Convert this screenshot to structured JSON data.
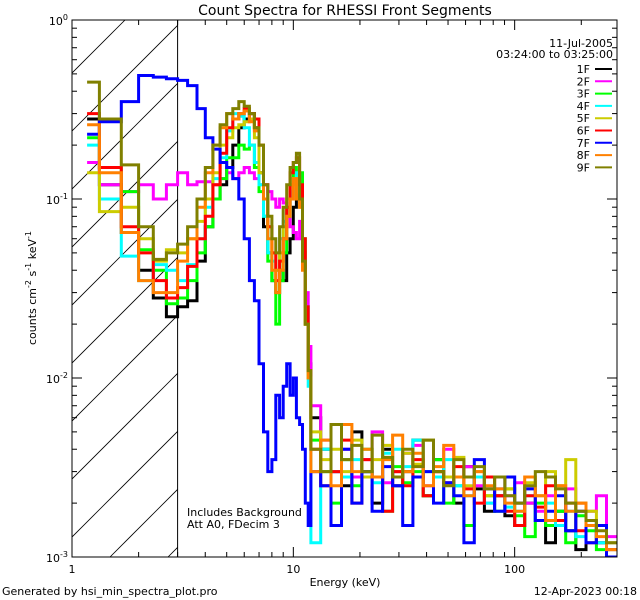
{
  "chart_data": {
    "type": "line",
    "title": "Count Spectra for RHESSI Front Segments",
    "xlabel": "Energy (keV)",
    "ylabel": {
      "base": "counts cm",
      "e1": "-2",
      "mid": " s",
      "e2": "-1",
      "mid2": " keV",
      "e3": "-1"
    },
    "xscale": "log",
    "yscale": "log",
    "xlim": [
      1,
      290
    ],
    "ylim": [
      0.001,
      1
    ],
    "x_ticks": [
      {
        "value": 1,
        "label": "1"
      },
      {
        "value": 10,
        "label": "10"
      },
      {
        "value": 100,
        "label": "100"
      }
    ],
    "y_ticks": [
      {
        "value": 1,
        "base": "10",
        "exp": "0"
      },
      {
        "value": 0.1,
        "base": "10",
        "exp": "-1"
      },
      {
        "value": 0.01,
        "base": "10",
        "exp": "-2"
      },
      {
        "value": 0.001,
        "base": "10",
        "exp": "-3"
      }
    ],
    "date": "11-Jul-2005",
    "time_range": "03:24:00 to 03:25:00",
    "hatched_region_keV": [
      1,
      3
    ],
    "annotations": [
      "Includes Background",
      "Att A0, FDecim 3"
    ],
    "legend_position": "top-right",
    "energy_edges": [
      1.17,
      1.33,
      1.67,
      2.0,
      2.33,
      2.67,
      3.0,
      3.33,
      3.67,
      4.0,
      4.33,
      4.67,
      5.0,
      5.33,
      5.67,
      6.0,
      6.33,
      6.67,
      7.0,
      7.33,
      7.67,
      8.0,
      8.33,
      8.67,
      9.0,
      9.33,
      9.67,
      10.0,
      10.33,
      10.67,
      11.0,
      11.33,
      11.67,
      12.0,
      13.3,
      14.8,
      16.5,
      18.4,
      20.4,
      22.7,
      25.3,
      28.1,
      31.2,
      34.7,
      38.6,
      43,
      47.8,
      53.1,
      59,
      65.7,
      73,
      81.2,
      90.3,
      100,
      111,
      124,
      138,
      153,
      170,
      189,
      210,
      234,
      260,
      290
    ],
    "series": [
      {
        "name": "1F",
        "color": "#000000",
        "values": [
          0.28,
          0.12,
          0.065,
          0.04,
          0.028,
          0.022,
          0.025,
          0.027,
          0.045,
          0.07,
          0.1,
          0.12,
          0.15,
          0.2,
          0.25,
          0.28,
          0.3,
          0.25,
          0.14,
          0.07,
          0.05,
          0.035,
          0.03,
          0.04,
          0.035,
          0.05,
          0.06,
          0.09,
          0.12,
          0.1,
          0.05,
          0.02,
          0.012,
          0.006,
          0.004,
          0.003,
          0.0025,
          0.005,
          0.003,
          0.002,
          0.004,
          0.0025,
          0.003,
          0.0045,
          0.0022,
          0.0035,
          0.0028,
          0.002,
          0.0032,
          0.0024,
          0.0018,
          0.0022,
          0.0017,
          0.0015,
          0.002,
          0.0016,
          0.0012,
          0.0018,
          0.0014,
          0.0011,
          0.0016,
          0.0012,
          0.001
        ]
      },
      {
        "name": "2F",
        "color": "#ff00ff",
        "values": [
          0.16,
          0.12,
          0.11,
          0.12,
          0.1,
          0.12,
          0.14,
          0.12,
          0.125,
          0.125,
          0.12,
          0.13,
          0.14,
          0.13,
          0.14,
          0.15,
          0.14,
          0.13,
          0.12,
          0.12,
          0.11,
          0.1,
          0.09,
          0.1,
          0.095,
          0.08,
          0.07,
          0.065,
          0.06,
          0.075,
          0.05,
          0.03,
          0.015,
          0.007,
          0.0045,
          0.003,
          0.004,
          0.0028,
          0.0035,
          0.005,
          0.0026,
          0.003,
          0.0038,
          0.0042,
          0.0025,
          0.003,
          0.004,
          0.0028,
          0.0032,
          0.0025,
          0.002,
          0.0024,
          0.0022,
          0.0026,
          0.002,
          0.0018,
          0.0022,
          0.0016,
          0.0024,
          0.002,
          0.0018,
          0.0022,
          0.0013
        ]
      },
      {
        "name": "3F",
        "color": "#00ff00",
        "values": [
          0.22,
          0.15,
          0.11,
          0.052,
          0.04,
          0.026,
          0.028,
          0.035,
          0.05,
          0.07,
          0.1,
          0.13,
          0.17,
          0.17,
          0.2,
          0.19,
          0.2,
          0.15,
          0.11,
          0.08,
          0.045,
          0.035,
          0.02,
          0.035,
          0.05,
          0.08,
          0.12,
          0.15,
          0.13,
          0.14,
          0.06,
          0.02,
          0.01,
          0.0045,
          0.003,
          0.002,
          0.0035,
          0.0025,
          0.004,
          0.0028,
          0.0018,
          0.0032,
          0.0026,
          0.003,
          0.0022,
          0.0035,
          0.002,
          0.0025,
          0.0015,
          0.0028,
          0.0022,
          0.0018,
          0.0024,
          0.0017,
          0.0013,
          0.002,
          0.0015,
          0.0018,
          0.0012,
          0.0017,
          0.0014,
          0.0011,
          0.001
        ]
      },
      {
        "name": "4F",
        "color": "#00ffff",
        "values": [
          0.2,
          0.1,
          0.048,
          0.035,
          0.043,
          0.04,
          0.035,
          0.043,
          0.06,
          0.09,
          0.13,
          0.17,
          0.24,
          0.3,
          0.29,
          0.25,
          0.2,
          0.16,
          0.12,
          0.08,
          0.05,
          0.045,
          0.04,
          0.06,
          0.075,
          0.09,
          0.1,
          0.11,
          0.14,
          0.1,
          0.05,
          0.025,
          0.009,
          0.0012,
          0.004,
          0.003,
          0.0028,
          0.0035,
          0.003,
          0.0026,
          0.0038,
          0.004,
          0.0032,
          0.0045,
          0.003,
          0.0028,
          0.0035,
          0.0025,
          0.0022,
          0.0028,
          0.002,
          0.0024,
          0.0019,
          0.0018,
          0.0022,
          0.0016,
          0.002,
          0.0015,
          0.0018,
          0.0013,
          0.0016,
          0.0012,
          0.0011
        ]
      },
      {
        "name": "5F",
        "color": "#cccc00",
        "values": [
          0.14,
          0.085,
          0.09,
          0.06,
          0.045,
          0.052,
          0.05,
          0.06,
          0.075,
          0.1,
          0.14,
          0.2,
          0.22,
          0.25,
          0.26,
          0.27,
          0.28,
          0.22,
          0.14,
          0.1,
          0.07,
          0.05,
          0.04,
          0.05,
          0.07,
          0.1,
          0.12,
          0.13,
          0.1,
          0.09,
          0.05,
          0.02,
          0.01,
          0.005,
          0.0035,
          0.004,
          0.003,
          0.0045,
          0.0028,
          0.0035,
          0.0042,
          0.003,
          0.0038,
          0.0033,
          0.0045,
          0.003,
          0.0028,
          0.0036,
          0.0025,
          0.003,
          0.0022,
          0.0028,
          0.0024,
          0.002,
          0.0026,
          0.0022,
          0.003,
          0.0025,
          0.0035,
          0.002,
          0.0018,
          0.0015,
          0.0012
        ]
      },
      {
        "name": "6F",
        "color": "#ff0000",
        "values": [
          0.3,
          0.15,
          0.07,
          0.05,
          0.035,
          0.028,
          0.032,
          0.042,
          0.06,
          0.08,
          0.12,
          0.18,
          0.25,
          0.28,
          0.3,
          0.32,
          0.3,
          0.28,
          0.2,
          0.12,
          0.07,
          0.05,
          0.035,
          0.045,
          0.06,
          0.09,
          0.14,
          0.16,
          0.17,
          0.12,
          0.06,
          0.025,
          0.011,
          0.004,
          0.0025,
          0.003,
          0.0045,
          0.002,
          0.0035,
          0.0028,
          0.0018,
          0.003,
          0.0025,
          0.0035,
          0.0022,
          0.003,
          0.0026,
          0.0032,
          0.0024,
          0.002,
          0.0028,
          0.0022,
          0.0018,
          0.0015,
          0.0022,
          0.0019,
          0.0025,
          0.0016,
          0.002,
          0.0014,
          0.0012,
          0.0015,
          0.0011
        ]
      },
      {
        "name": "7F",
        "color": "#0000ff",
        "values": [
          0.23,
          0.27,
          0.35,
          0.49,
          0.48,
          0.47,
          0.46,
          0.43,
          0.32,
          0.22,
          0.19,
          0.16,
          0.15,
          0.13,
          0.1,
          0.06,
          0.035,
          0.027,
          0.012,
          0.005,
          0.003,
          0.0035,
          0.008,
          0.006,
          0.009,
          0.012,
          0.008,
          0.01,
          0.006,
          0.0055,
          0.004,
          0.002,
          0.0015,
          0.003,
          0.0025,
          0.0015,
          0.004,
          0.002,
          0.003,
          0.0018,
          0.0032,
          0.0025,
          0.0015,
          0.0028,
          0.003,
          0.002,
          0.0026,
          0.0022,
          0.0012,
          0.0035,
          0.0024,
          0.0018,
          0.0028,
          0.002,
          0.0024,
          0.0016,
          0.0018,
          0.0022,
          0.0014,
          0.0018,
          0.0012,
          0.0015,
          0.001
        ]
      },
      {
        "name": "8F",
        "color": "#ff8000",
        "values": [
          0.26,
          0.14,
          0.065,
          0.035,
          0.03,
          0.03,
          0.045,
          0.06,
          0.09,
          0.14,
          0.2,
          0.25,
          0.3,
          0.28,
          0.3,
          0.31,
          0.27,
          0.24,
          0.2,
          0.1,
          0.06,
          0.04,
          0.03,
          0.04,
          0.06,
          0.08,
          0.1,
          0.13,
          0.1,
          0.09,
          0.04,
          0.02,
          0.01,
          0.003,
          0.0045,
          0.0025,
          0.0055,
          0.003,
          0.004,
          0.0028,
          0.0035,
          0.0048,
          0.003,
          0.0038,
          0.0025,
          0.0032,
          0.0042,
          0.0028,
          0.0022,
          0.003,
          0.0025,
          0.0024,
          0.002,
          0.0018,
          0.0028,
          0.0022,
          0.0016,
          0.0025,
          0.0018,
          0.002,
          0.0015,
          0.0013,
          0.0011
        ]
      },
      {
        "name": "9F",
        "color": "#808000",
        "values": [
          0.45,
          0.28,
          0.155,
          0.07,
          0.046,
          0.05,
          0.056,
          0.07,
          0.1,
          0.15,
          0.2,
          0.26,
          0.3,
          0.32,
          0.35,
          0.33,
          0.3,
          0.25,
          0.2,
          0.12,
          0.08,
          0.06,
          0.05,
          0.07,
          0.09,
          0.12,
          0.15,
          0.16,
          0.18,
          0.1,
          0.045,
          0.02,
          0.011,
          0.004,
          0.003,
          0.0055,
          0.0035,
          0.0042,
          0.003,
          0.0048,
          0.0036,
          0.0028,
          0.004,
          0.0032,
          0.0045,
          0.003,
          0.0025,
          0.0035,
          0.0028,
          0.0032,
          0.0024,
          0.0028,
          0.0022,
          0.002,
          0.0025,
          0.003,
          0.0028,
          0.0024,
          0.002,
          0.0018,
          0.0016,
          0.0014,
          0.0012
        ]
      }
    ]
  },
  "footer": {
    "generated_by": "Generated by hsi_min_spectra_plot.pro",
    "timestamp": "12-Apr-2023 00:18"
  }
}
